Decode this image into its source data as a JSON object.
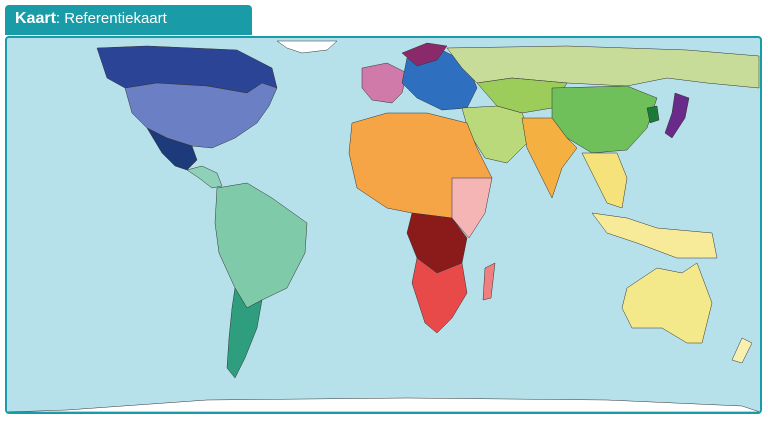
{
  "header": {
    "label": "Kaart",
    "separator": ":",
    "name": "Referentiekaart"
  }
}
